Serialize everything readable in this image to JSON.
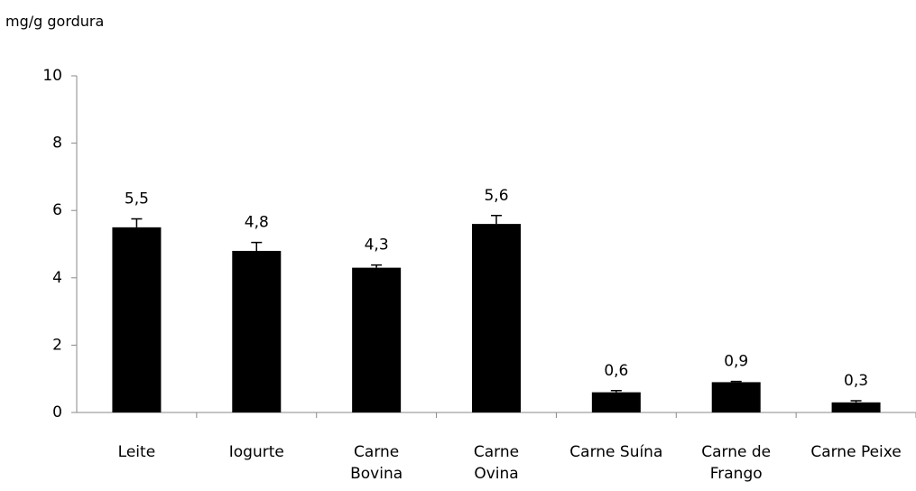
{
  "chart_data": {
    "type": "bar",
    "axis_label": "mg/g gordura",
    "categories": [
      "Leite",
      "Iogurte",
      "Carne\nBovina",
      "Carne\nOvina",
      "Carne Suína",
      "Carne de\nFrango",
      "Carne Peixe"
    ],
    "values": [
      5.5,
      4.8,
      4.3,
      5.6,
      0.6,
      0.9,
      0.3
    ],
    "value_labels": [
      "5,5",
      "4,8",
      "4,3",
      "5,6",
      "0,6",
      "0,9",
      "0,3"
    ],
    "errors": [
      0.25,
      0.25,
      0.08,
      0.25,
      0.05,
      0.02,
      0.05
    ],
    "color": "#000000",
    "ylim": [
      0,
      10
    ],
    "yticks": [
      0,
      2,
      4,
      6,
      8,
      10
    ],
    "grid": false
  }
}
